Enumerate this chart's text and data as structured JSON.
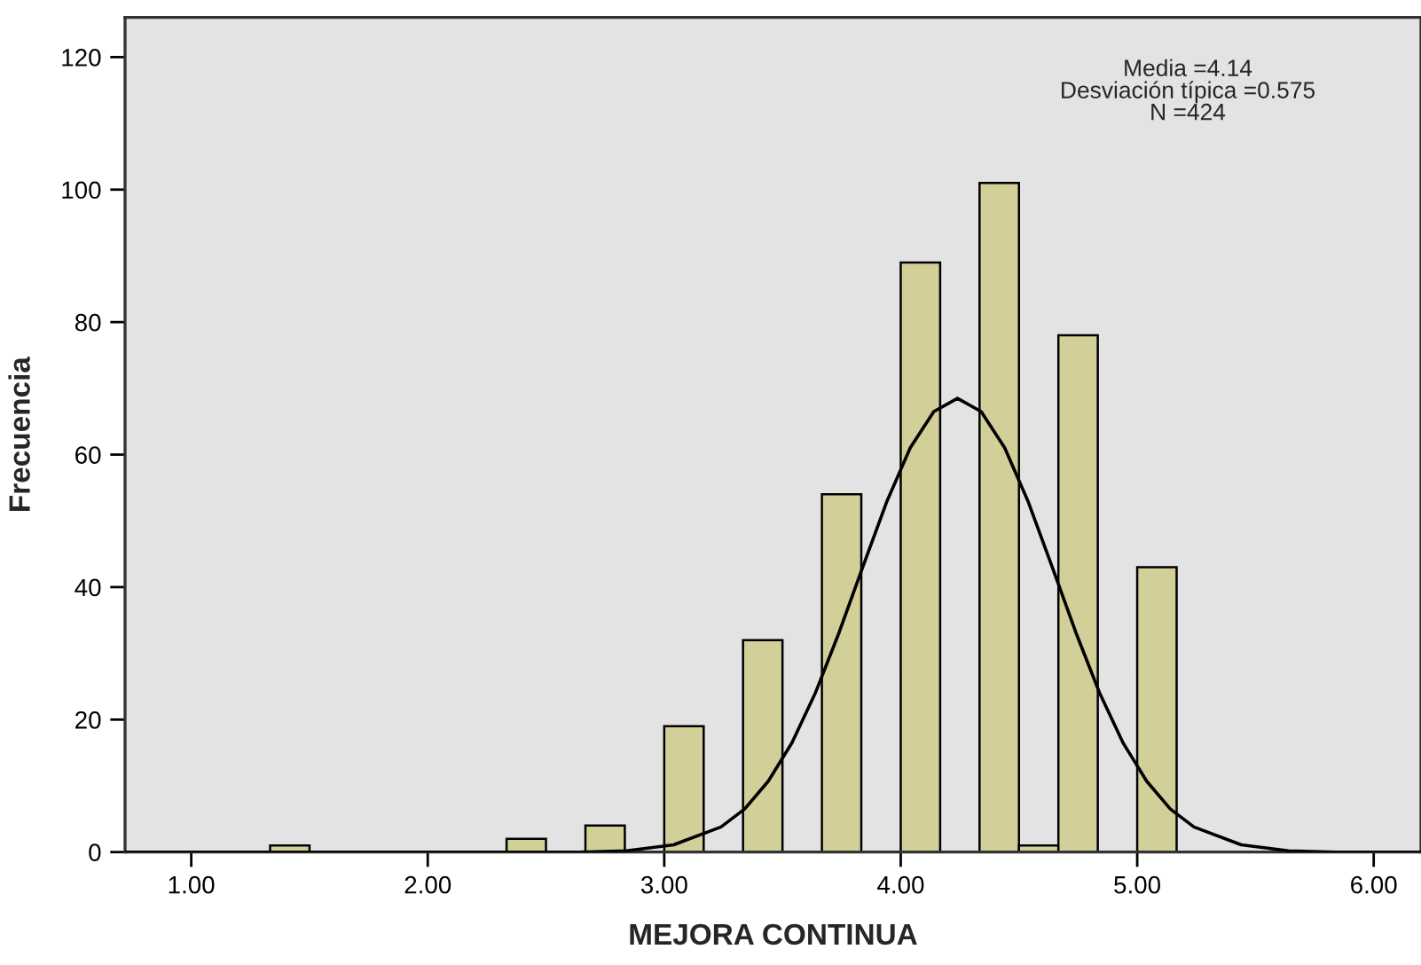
{
  "chart_data": {
    "type": "histogram",
    "xlabel": "MEJORA CONTINUA",
    "ylabel": "Frecuencia",
    "bins": [
      1.3333,
      1.5,
      1.6667,
      1.8333,
      2.0,
      2.1667,
      2.3333,
      2.5,
      2.6667,
      2.8333,
      3.0,
      3.1667,
      3.3333,
      3.5,
      3.6667,
      3.8333,
      4.0,
      4.1667,
      4.3333,
      4.5,
      4.6667,
      4.8333,
      5.0,
      5.1667
    ],
    "values": [
      1,
      0,
      0,
      0,
      0,
      0,
      2,
      0,
      4,
      0,
      19,
      0,
      32,
      0,
      54,
      0,
      89,
      0,
      101,
      1,
      78,
      0,
      43
    ],
    "color": "#d3cf98",
    "series": [
      {
        "type": "line",
        "color": "#000000",
        "x": [
          0.72,
          2.4,
          2.64,
          2.84,
          3.04,
          3.24,
          3.34,
          3.44,
          3.54,
          3.64,
          3.74,
          3.84,
          3.94,
          4.04,
          4.14,
          4.24,
          4.34,
          4.44,
          4.54,
          4.64,
          4.74,
          4.84,
          4.94,
          5.04,
          5.14,
          5.24,
          5.44,
          5.64,
          5.84,
          6.2
        ],
        "values": [
          0,
          0,
          0.0,
          0.2,
          1.1,
          3.8,
          6.5,
          10.7,
          16.5,
          24.1,
          33.2,
          43.1,
          52.8,
          61.0,
          66.5,
          68.5,
          66.5,
          61.0,
          52.8,
          43.1,
          33.2,
          24.1,
          16.5,
          10.7,
          6.5,
          3.8,
          1.1,
          0.2,
          0.0,
          0
        ]
      }
    ],
    "xlim": [
      0.72,
      6.2
    ],
    "xticks": [
      {
        "value": 1,
        "label": "1.00"
      },
      {
        "value": 2,
        "label": "2.00"
      },
      {
        "value": 3,
        "label": "3.00"
      },
      {
        "value": 4,
        "label": "4.00"
      },
      {
        "value": 5,
        "label": "5.00"
      },
      {
        "value": 6,
        "label": "6.00"
      }
    ],
    "ylim": [
      0,
      126
    ],
    "yticks": [
      0,
      20,
      40,
      60,
      80,
      100,
      120
    ],
    "grid": false,
    "annotations": [
      "Media =4.14\nDesviación típica =0.575\nN =424"
    ]
  }
}
